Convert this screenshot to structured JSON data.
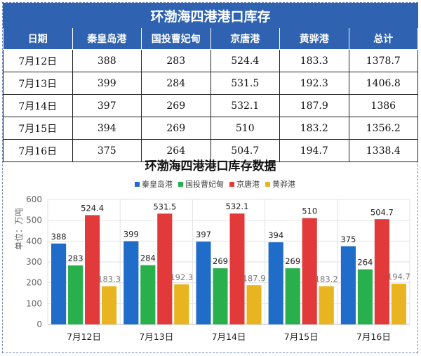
{
  "title": "环渤海四港港口库存",
  "table": {
    "headers": [
      "日期",
      "秦皇岛港",
      "国投曹妃甸",
      "京唐港",
      "黄骅港",
      "总计"
    ],
    "rows": [
      [
        "7月12日",
        "388",
        "283",
        "524.4",
        "183.3",
        "1378.7"
      ],
      [
        "7月13日",
        "399",
        "284",
        "531.5",
        "192.3",
        "1406.8"
      ],
      [
        "7月14日",
        "397",
        "269",
        "532.1",
        "187.9",
        "1386"
      ],
      [
        "7月15日",
        "394",
        "269",
        "510",
        "183.2",
        "1356.2"
      ],
      [
        "7月16日",
        "375",
        "264",
        "504.7",
        "194.7",
        "1338.4"
      ]
    ]
  },
  "chart_data": {
    "type": "bar",
    "title": "环渤海四港港口库存数据",
    "ylabel": "单位：万吨",
    "ylim": [
      0,
      600
    ],
    "yticks": [
      0,
      100,
      200,
      300,
      400,
      500,
      600
    ],
    "categories": [
      "7月12日",
      "7月13日",
      "7月14日",
      "7月15日",
      "7月16日"
    ],
    "series": [
      {
        "name": "秦皇岛港",
        "color": "#1f6cc9",
        "values": [
          388,
          399,
          397,
          394,
          375
        ]
      },
      {
        "name": "国投曹妃甸",
        "color": "#27b04b",
        "values": [
          283,
          284,
          269,
          269,
          264
        ]
      },
      {
        "name": "京唐港",
        "color": "#e23a3a",
        "values": [
          524.4,
          531.5,
          532.1,
          510,
          504.7
        ]
      },
      {
        "name": "黄骅港",
        "color": "#e8b520",
        "values": [
          183.3,
          192.3,
          187.9,
          183.2,
          194.7
        ]
      }
    ],
    "legend": "top",
    "grid": true
  }
}
